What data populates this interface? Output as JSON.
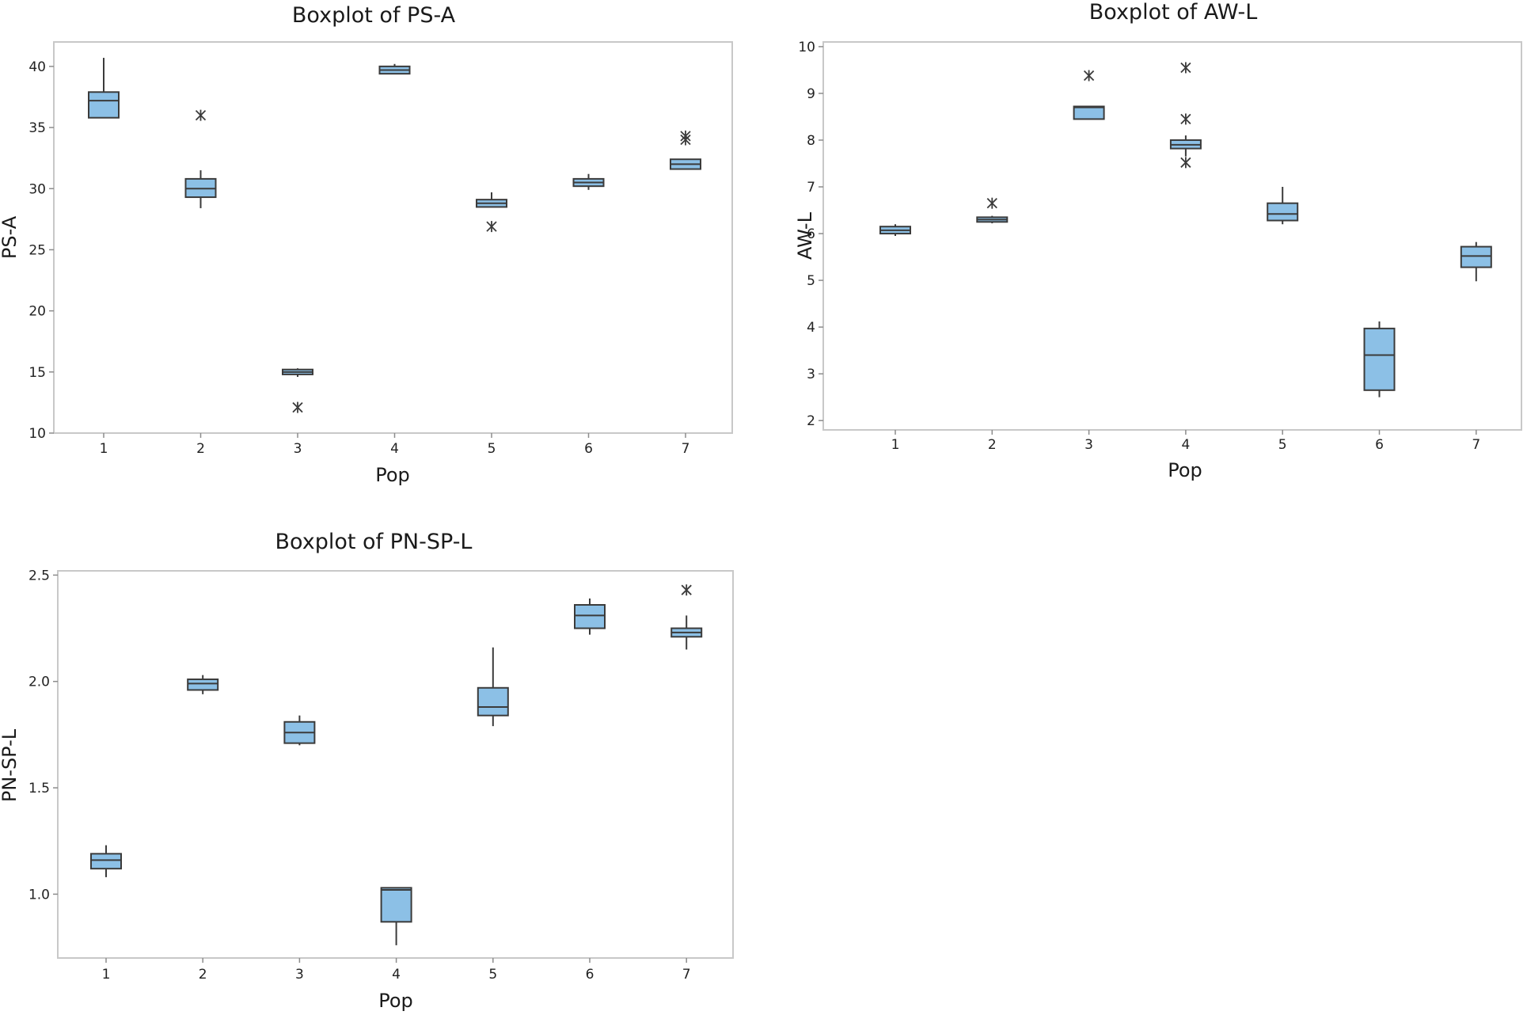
{
  "chart_data": [
    {
      "type": "boxplot",
      "title": "Boxplot of PS-A",
      "xlabel": "Pop",
      "ylabel": "PS-A",
      "categories": [
        "1",
        "2",
        "3",
        "4",
        "5",
        "6",
        "7"
      ],
      "ylim": [
        10,
        42
      ],
      "yticks": [
        "10",
        "15",
        "20",
        "25",
        "30",
        "35",
        "40"
      ],
      "boxes": [
        {
          "category": "1",
          "whisker_low": 35.8,
          "q1": 35.8,
          "median": 37.2,
          "q3": 37.9,
          "whisker_high": 40.7,
          "outliers": []
        },
        {
          "category": "2",
          "whisker_low": 28.4,
          "q1": 29.3,
          "median": 30.0,
          "q3": 30.8,
          "whisker_high": 31.5,
          "outliers": [
            36.0
          ]
        },
        {
          "category": "3",
          "whisker_low": 14.6,
          "q1": 14.8,
          "median": 15.0,
          "q3": 15.2,
          "whisker_high": 15.3,
          "outliers": [
            12.1
          ]
        },
        {
          "category": "4",
          "whisker_low": 39.4,
          "q1": 39.4,
          "median": 39.7,
          "q3": 40.0,
          "whisker_high": 40.2,
          "outliers": []
        },
        {
          "category": "5",
          "whisker_low": 28.5,
          "q1": 28.5,
          "median": 28.8,
          "q3": 29.1,
          "whisker_high": 29.7,
          "outliers": [
            26.9
          ]
        },
        {
          "category": "6",
          "whisker_low": 29.9,
          "q1": 30.2,
          "median": 30.5,
          "q3": 30.8,
          "whisker_high": 31.2,
          "outliers": []
        },
        {
          "category": "7",
          "whisker_low": 31.6,
          "q1": 31.6,
          "median": 32.0,
          "q3": 32.4,
          "whisker_high": 32.4,
          "outliers": [
            34.0,
            34.3
          ]
        }
      ]
    },
    {
      "type": "boxplot",
      "title": "Boxplot of AW-L",
      "xlabel": "Pop",
      "ylabel": "AW-L",
      "categories": [
        "1",
        "2",
        "3",
        "4",
        "5",
        "6",
        "7"
      ],
      "ylim": [
        1.8,
        10.1
      ],
      "yticks": [
        "2",
        "3",
        "4",
        "5",
        "6",
        "7",
        "8",
        "9",
        "10"
      ],
      "boxes": [
        {
          "category": "1",
          "whisker_low": 5.95,
          "q1": 6.0,
          "median": 6.07,
          "q3": 6.15,
          "whisker_high": 6.2,
          "outliers": []
        },
        {
          "category": "2",
          "whisker_low": 6.22,
          "q1": 6.25,
          "median": 6.3,
          "q3": 6.35,
          "whisker_high": 6.38,
          "outliers": [
            6.65
          ]
        },
        {
          "category": "3",
          "whisker_low": 8.45,
          "q1": 8.45,
          "median": 8.7,
          "q3": 8.72,
          "whisker_high": 8.72,
          "outliers": [
            9.38
          ]
        },
        {
          "category": "4",
          "whisker_low": 7.65,
          "q1": 7.82,
          "median": 7.9,
          "q3": 8.0,
          "whisker_high": 8.1,
          "outliers": [
            7.52,
            8.45,
            9.55
          ]
        },
        {
          "category": "5",
          "whisker_low": 6.2,
          "q1": 6.28,
          "median": 6.42,
          "q3": 6.65,
          "whisker_high": 7.0,
          "outliers": []
        },
        {
          "category": "6",
          "whisker_low": 2.5,
          "q1": 2.65,
          "median": 3.4,
          "q3": 3.97,
          "whisker_high": 4.12,
          "outliers": []
        },
        {
          "category": "7",
          "whisker_low": 4.98,
          "q1": 5.28,
          "median": 5.52,
          "q3": 5.72,
          "whisker_high": 5.82,
          "outliers": []
        }
      ]
    },
    {
      "type": "boxplot",
      "title": "Boxplot of PN-SP-L",
      "xlabel": "Pop",
      "ylabel": "PN-SP-L",
      "categories": [
        "1",
        "2",
        "3",
        "4",
        "5",
        "6",
        "7"
      ],
      "ylim": [
        0.7,
        2.52
      ],
      "yticks": [
        "1.0",
        "1.5",
        "2.0",
        "2.5"
      ],
      "boxes": [
        {
          "category": "1",
          "whisker_low": 1.08,
          "q1": 1.12,
          "median": 1.16,
          "q3": 1.19,
          "whisker_high": 1.23,
          "outliers": []
        },
        {
          "category": "2",
          "whisker_low": 1.94,
          "q1": 1.96,
          "median": 1.99,
          "q3": 2.01,
          "whisker_high": 2.03,
          "outliers": []
        },
        {
          "category": "3",
          "whisker_low": 1.7,
          "q1": 1.71,
          "median": 1.76,
          "q3": 1.81,
          "whisker_high": 1.84,
          "outliers": []
        },
        {
          "category": "4",
          "whisker_low": 0.76,
          "q1": 0.87,
          "median": 1.02,
          "q3": 1.03,
          "whisker_high": 1.03,
          "outliers": []
        },
        {
          "category": "5",
          "whisker_low": 1.79,
          "q1": 1.84,
          "median": 1.88,
          "q3": 1.97,
          "whisker_high": 2.16,
          "outliers": []
        },
        {
          "category": "6",
          "whisker_low": 2.22,
          "q1": 2.25,
          "median": 2.31,
          "q3": 2.36,
          "whisker_high": 2.39,
          "outliers": []
        },
        {
          "category": "7",
          "whisker_low": 2.15,
          "q1": 2.21,
          "median": 2.23,
          "q3": 2.25,
          "whisker_high": 2.31,
          "outliers": [
            2.43
          ]
        }
      ]
    }
  ]
}
